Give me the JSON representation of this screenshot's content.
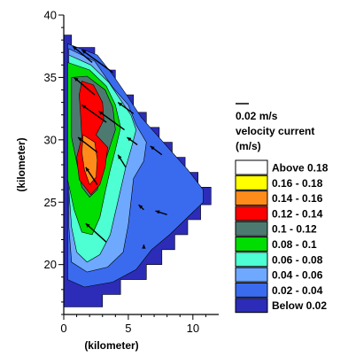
{
  "chart_data": {
    "type": "contour",
    "title": "",
    "xlabel": "(kilometer)",
    "ylabel": "(kilometer)",
    "xlim": [
      0,
      12
    ],
    "ylim": [
      16,
      40
    ],
    "x_ticks": [
      0,
      5,
      10
    ],
    "y_ticks": [
      20,
      25,
      30,
      35,
      40
    ],
    "grid": false,
    "legend_position": "right",
    "vector_scale_label": "0.02 m/s",
    "legend_title": "velocity current",
    "legend_unit": "(m/s)",
    "levels": [
      {
        "label": "Above 0.18",
        "color": "#ffffff"
      },
      {
        "label": "0.16 - 0.18",
        "color": "#ffff00"
      },
      {
        "label": "0.14 - 0.16",
        "color": "#ff8c1a"
      },
      {
        "label": "0.12 - 0.14",
        "color": "#ff0000"
      },
      {
        "label": "0.1 - 0.12",
        "color": "#4d7a70"
      },
      {
        "label": "0.08 -  0.1",
        "color": "#00dd00"
      },
      {
        "label": "0.06 - 0.08",
        "color": "#4dffd2"
      },
      {
        "label": "0.04 - 0.06",
        "color": "#6fa8ff"
      },
      {
        "label": "0.02 - 0.04",
        "color": "#3a6bef"
      },
      {
        "label": "Below 0.02",
        "color": "#2c2cb8"
      }
    ],
    "vectors": [
      {
        "x": 3.8,
        "y": 35.4,
        "dx": -2.4,
        "dy": 1.8
      },
      {
        "x": 2.2,
        "y": 36.2,
        "dx": -1.5,
        "dy": 1.3
      },
      {
        "x": 2.4,
        "y": 33.6,
        "dx": -1.6,
        "dy": 1.4
      },
      {
        "x": 3.3,
        "y": 31.4,
        "dx": -1.9,
        "dy": 1.4
      },
      {
        "x": 4.7,
        "y": 30.8,
        "dx": -2.0,
        "dy": 1.5
      },
      {
        "x": 2.6,
        "y": 29.0,
        "dx": -1.5,
        "dy": 1.2
      },
      {
        "x": 2.6,
        "y": 26.4,
        "dx": -0.9,
        "dy": 1.4
      },
      {
        "x": 4.8,
        "y": 27.8,
        "dx": -0.6,
        "dy": 1.0
      },
      {
        "x": 3.3,
        "y": 21.8,
        "dx": -1.6,
        "dy": 1.5
      },
      {
        "x": 5.4,
        "y": 32.1,
        "dx": -1.2,
        "dy": 0.9
      },
      {
        "x": 7.6,
        "y": 28.8,
        "dx": -0.9,
        "dy": 0.7
      },
      {
        "x": 5.7,
        "y": 29.6,
        "dx": -0.8,
        "dy": 0.6
      },
      {
        "x": 8.0,
        "y": 24.0,
        "dx": -0.9,
        "dy": 0.3
      },
      {
        "x": 6.2,
        "y": 24.4,
        "dx": -0.4,
        "dy": 0.4
      },
      {
        "x": 6.2,
        "y": 21.3,
        "dx": 0.0,
        "dy": 0.3
      }
    ]
  }
}
